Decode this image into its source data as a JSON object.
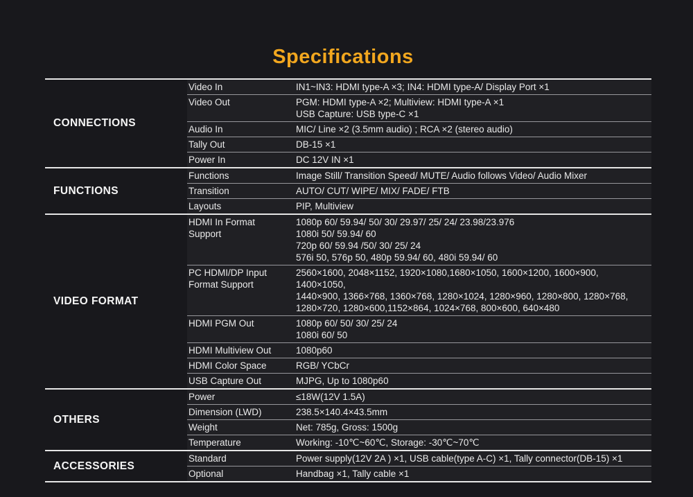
{
  "title": "Specifications",
  "colors": {
    "background": "#18181c",
    "title_accent": "#F2A71F",
    "section_line": "#e6e6e6",
    "row_line": "#97979c",
    "text": "#eaeaea"
  },
  "table": {
    "sections": [
      {
        "name": "CONNECTIONS",
        "rows": [
          {
            "label": "Video In",
            "value": [
              "IN1~IN3: HDMI type-A ×3; IN4: HDMI type-A/ Display Port ×1"
            ]
          },
          {
            "label": "Video Out",
            "value": [
              "PGM: HDMI type-A ×2; Multiview: HDMI type-A ×1",
              "USB Capture: USB type-C ×1"
            ]
          },
          {
            "label": "Audio In",
            "value": [
              "MIC/ Line ×2 (3.5mm audio) ; RCA ×2 (stereo audio)"
            ]
          },
          {
            "label": "Tally Out",
            "value": [
              "DB-15 ×1"
            ]
          },
          {
            "label": "Power In",
            "value": [
              "DC 12V IN ×1"
            ]
          }
        ]
      },
      {
        "name": "FUNCTIONS",
        "rows": [
          {
            "label": "Functions",
            "value": [
              "Image Still/ Transition Speed/ MUTE/ Audio follows Video/ Audio Mixer"
            ]
          },
          {
            "label": "Transition",
            "value": [
              "AUTO/ CUT/ WIPE/ MIX/ FADE/ FTB"
            ]
          },
          {
            "label": "Layouts",
            "value": [
              "PIP, Multiview"
            ]
          }
        ]
      },
      {
        "name": "VIDEO FORMAT",
        "rows": [
          {
            "label": "HDMI In Format Support",
            "value": [
              "1080p 60/ 59.94/ 50/ 30/ 29.97/ 25/ 24/ 23.98/23.976",
              "1080i 50/ 59.94/ 60",
              "720p 60/ 59.94 /50/ 30/ 25/ 24",
              "576i 50, 576p 50, 480p 59.94/ 60, 480i 59.94/ 60"
            ]
          },
          {
            "label": "PC HDMI/DP Input Format Support",
            "value": [
              "2560×1600, 2048×1152, 1920×1080,1680×1050, 1600×1200, 1600×900, 1400×1050,",
              "1440×900, 1366×768, 1360×768,  1280×1024, 1280×960, 1280×800, 1280×768,",
              "1280×720, 1280×600,1152×864, 1024×768, 800×600, 640×480"
            ]
          },
          {
            "label": "HDMI PGM Out",
            "value": [
              "1080p 60/ 50/ 30/ 25/ 24",
              "1080i 60/ 50"
            ]
          },
          {
            "label": "HDMI Multiview Out",
            "value": [
              "1080p60"
            ]
          },
          {
            "label": "HDMI Color Space",
            "value": [
              "RGB/ YCbCr"
            ]
          },
          {
            "label": "USB Capture Out",
            "value": [
              "MJPG, Up to 1080p60"
            ]
          }
        ]
      },
      {
        "name": "OTHERS",
        "rows": [
          {
            "label": "Power",
            "value": [
              "≤18W(12V 1.5A)"
            ]
          },
          {
            "label": "Dimension (LWD)",
            "value": [
              "238.5×140.4×43.5mm"
            ]
          },
          {
            "label": "Weight",
            "value": [
              "Net: 785g, Gross: 1500g"
            ]
          },
          {
            "label": "Temperature",
            "value": [
              "Working: -10℃~60℃, Storage: -30℃~70℃"
            ]
          }
        ]
      },
      {
        "name": "ACCESSORIES",
        "rows": [
          {
            "label": "Standard",
            "value": [
              "Power supply(12V 2A ) ×1, USB cable(type A-C) ×1, Tally connector(DB-15) ×1"
            ]
          },
          {
            "label": "Optional",
            "value": [
              "Handbag ×1, Tally cable ×1"
            ]
          }
        ]
      }
    ]
  }
}
